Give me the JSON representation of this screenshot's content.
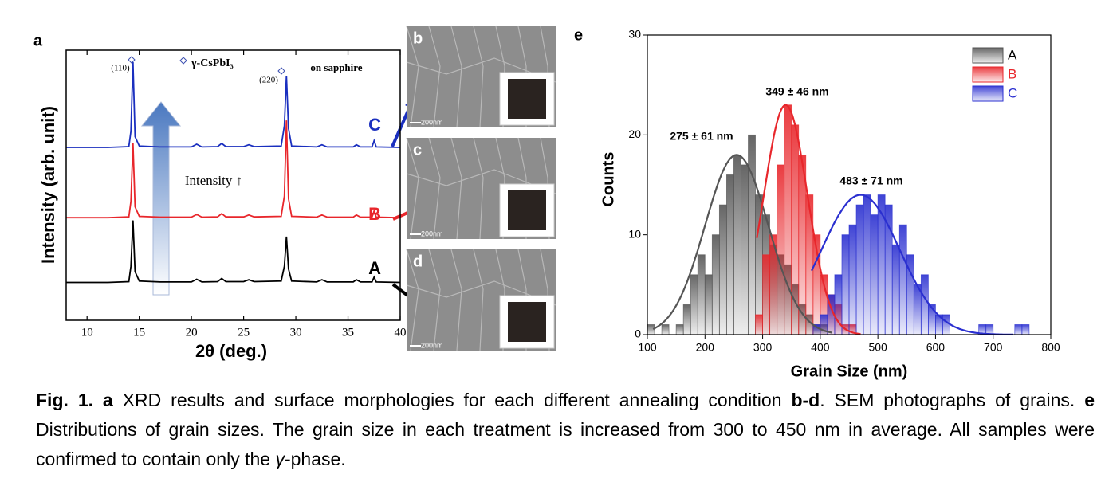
{
  "chart_data": [
    {
      "type": "line",
      "panel": "a",
      "xlabel": "2θ (deg.)",
      "ylabel": "Intensity (arb. unit)",
      "xlim": [
        8,
        40
      ],
      "xticks": [
        10,
        15,
        20,
        25,
        30,
        35,
        40
      ],
      "ylim": [
        0,
        100
      ],
      "x": [
        8,
        10,
        12,
        14,
        14.2,
        14.4,
        14.6,
        15,
        17,
        20,
        20.5,
        21,
        22.5,
        22.9,
        23.3,
        25,
        25.5,
        26,
        28.6,
        28.9,
        29.1,
        29.3,
        29.6,
        32,
        32.5,
        33,
        35.5,
        35.8,
        36.2,
        37.3,
        37.5,
        37.7,
        40
      ],
      "series": [
        {
          "name": "A",
          "color": "#000000",
          "values": [
            14,
            14,
            14,
            14.3,
            20,
            37,
            18,
            14.5,
            14.2,
            14.2,
            15.2,
            14.2,
            14.3,
            15.5,
            14.3,
            14.3,
            15,
            14.3,
            14.5,
            20,
            31,
            19,
            14.5,
            14.2,
            15,
            14.2,
            14.2,
            15,
            14.2,
            14.2,
            16,
            14.2,
            14
          ]
        },
        {
          "name": "B",
          "color": "#e8262b",
          "values": [
            38,
            38,
            38,
            38.3,
            44,
            65.5,
            42,
            38.5,
            38.2,
            38.2,
            39.2,
            38.2,
            38.3,
            39.5,
            38.3,
            38.3,
            39,
            38.3,
            38.5,
            46,
            74,
            45,
            38.5,
            38.2,
            39,
            38.2,
            38.2,
            39,
            38.2,
            38.2,
            40.5,
            38.2,
            38
          ]
        },
        {
          "name": "C",
          "color": "#1a2fbf",
          "values": [
            64,
            64,
            64,
            64.3,
            70,
            95.6,
            68,
            64.5,
            64.2,
            64.2,
            65.2,
            64.2,
            64.3,
            65.5,
            64.3,
            64.3,
            65,
            64.3,
            64.5,
            72,
            90.5,
            71,
            64.5,
            64.2,
            65,
            64.2,
            64.2,
            65,
            64.2,
            64.2,
            66.5,
            64.2,
            64
          ]
        }
      ],
      "annotations": [
        "(110)",
        "(220)",
        "γ-CsPbI₃",
        "on sapphire",
        "Intensity ↑"
      ]
    },
    {
      "type": "histogram",
      "panel": "e",
      "xlabel": "Grain Size (nm)",
      "ylabel": "Counts",
      "xlim": [
        100,
        800
      ],
      "xticks": [
        100,
        200,
        300,
        400,
        500,
        600,
        700,
        800
      ],
      "ylim": [
        0,
        30
      ],
      "yticks": [
        0,
        10,
        20,
        30
      ],
      "legend": "upper right",
      "series": [
        {
          "name": "A",
          "color": "#555555",
          "bins": [
            100,
            112.5,
            125,
            137.5,
            150,
            162.5,
            175,
            187.5,
            200,
            212.5,
            225,
            237.5,
            250,
            262.5,
            275,
            287.5,
            300,
            312.5,
            325,
            337.5,
            350,
            362.5,
            375,
            387.5,
            400,
            412.5
          ],
          "values": [
            1,
            0,
            1,
            0,
            1,
            3,
            6,
            8,
            6,
            10,
            13,
            16,
            18,
            17,
            20,
            14,
            12,
            9,
            8,
            7,
            5,
            3,
            2,
            1,
            1
          ],
          "fit": {
            "center": 255,
            "width": 55,
            "height": 18,
            "range": [
              110,
              420
            ]
          }
        },
        {
          "name": "B",
          "color": "#e8262b",
          "bins": [
            287.5,
            300,
            312.5,
            325,
            337.5,
            350,
            362.5,
            375,
            387.5,
            400,
            412.5,
            425,
            437.5,
            450,
            462.5
          ],
          "values": [
            2,
            8,
            10,
            17,
            23,
            21,
            18,
            14,
            10,
            6,
            4,
            3,
            1,
            1
          ],
          "fit": {
            "center": 340,
            "width": 38,
            "height": 23,
            "range": [
              290,
              470
            ]
          }
        },
        {
          "name": "C",
          "color": "#2a2fd0",
          "bins": [
            387.5,
            400,
            412.5,
            425,
            437.5,
            450,
            462.5,
            475,
            487.5,
            500,
            512.5,
            525,
            537.5,
            550,
            562.5,
            575,
            587.5,
            600,
            612.5,
            625,
            637.5,
            650,
            662.5,
            675,
            687.5,
            700,
            712.5,
            725,
            737.5,
            750,
            762.5
          ],
          "values": [
            1,
            2,
            4,
            6,
            10,
            11,
            13,
            14,
            12,
            14,
            13,
            9,
            11,
            8,
            5,
            6,
            3,
            2,
            2,
            0,
            0,
            0,
            0,
            1,
            1,
            0,
            0,
            0,
            1,
            1
          ],
          "fit": {
            "center": 470,
            "width": 68,
            "height": 14,
            "range": [
              385,
              735
            ]
          }
        }
      ],
      "annotations": [
        "275 ± 61 nm",
        "349 ± 46 nm",
        "483 ± 71 nm"
      ]
    }
  ],
  "sem_panels": [
    {
      "label": "b",
      "scale_bar": "200nm"
    },
    {
      "label": "c",
      "scale_bar": "200nm"
    },
    {
      "label": "d",
      "scale_bar": "200nm"
    }
  ],
  "caption": [
    {
      "text": "Fig. 1.",
      "bold": true
    },
    {
      "text": " a",
      "bold": true
    },
    {
      "text": " XRD results and surface morphologies for each different annealing condition "
    },
    {
      "text": "b-d",
      "bold": true
    },
    {
      "text": ". SEM photographs of grains. "
    },
    {
      "text": "e",
      "bold": true
    },
    {
      "text": " Distributions of grain sizes. The grain size in each treatment is increased from 300 to 450 nm in average. All samples were confirmed to contain only the "
    },
    {
      "text": "γ",
      "italic": true
    },
    {
      "text": "-phase."
    }
  ]
}
